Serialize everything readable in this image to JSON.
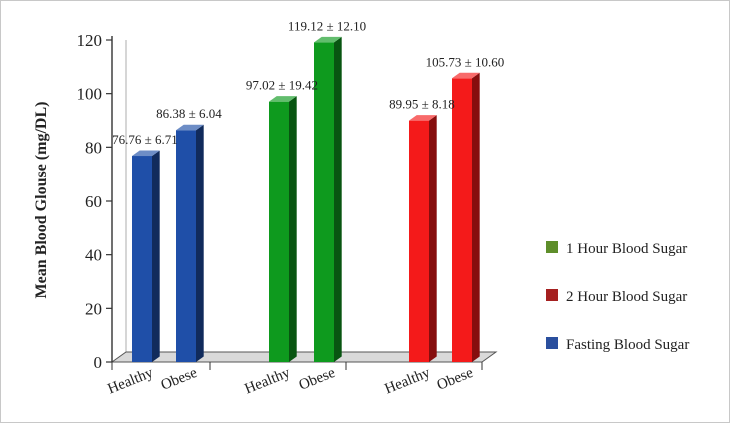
{
  "chart_data": {
    "type": "bar",
    "ylabel": "Mean Blood Glouse (mg/DL)",
    "ylim": [
      0,
      120
    ],
    "yticks": [
      0,
      20,
      40,
      60,
      80,
      100,
      120
    ],
    "style": "3d-bars",
    "legend_position": "right",
    "groups": [
      {
        "series": "Fasting Blood Sugar",
        "color": "#1F4FA8",
        "bars": [
          {
            "category": "Healthy",
            "value": 76.76,
            "label": "76.76 ± 6.71"
          },
          {
            "category": "Obese",
            "value": 86.38,
            "label": "86.38 ± 6.04"
          }
        ]
      },
      {
        "series": "1 Hour Blood Sugar",
        "color": "#0E9A1E",
        "bars": [
          {
            "category": "Healthy",
            "value": 97.02,
            "label": "97.02 ± 19.42"
          },
          {
            "category": "Obese",
            "value": 119.12,
            "label": "119.12 ± 12.10"
          }
        ]
      },
      {
        "series": "2 Hour Blood Sugar",
        "color": "#F41A1A",
        "bars": [
          {
            "category": "Healthy",
            "value": 89.95,
            "label": "89.95 ± 8.18"
          },
          {
            "category": "Obese",
            "value": 105.73,
            "label": "105.73 ± 10.60"
          }
        ]
      }
    ],
    "legend": [
      {
        "name": "1 Hour Blood Sugar",
        "color": "#5E8E2A"
      },
      {
        "name": "2 Hour Blood Sugar",
        "color": "#A52020"
      },
      {
        "name": "Fasting Blood Sugar",
        "color": "#2A4F9E"
      }
    ]
  }
}
